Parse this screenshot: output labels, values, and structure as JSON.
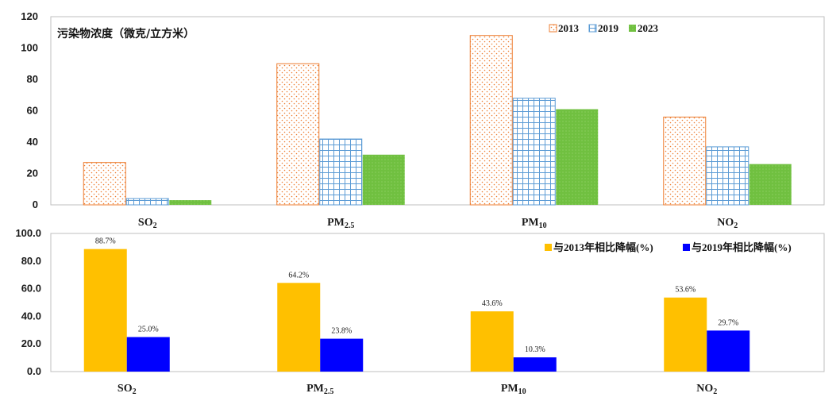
{
  "chart_data": [
    {
      "type": "bar",
      "title": "污染物浓度（微克/立方米）",
      "categories": [
        {
          "main": "SO",
          "sub": "2"
        },
        {
          "main": "PM",
          "sub": "2.5"
        },
        {
          "main": "PM",
          "sub": "10"
        },
        {
          "main": "NO",
          "sub": "2"
        }
      ],
      "series": [
        {
          "name": "2013",
          "values": [
            27,
            90,
            108,
            56
          ],
          "color": "#ED7D31",
          "pattern": "dots"
        },
        {
          "name": "2019",
          "values": [
            4,
            42,
            68,
            37
          ],
          "color": "#5B9BD5",
          "pattern": "grid"
        },
        {
          "name": "2023",
          "values": [
            3,
            32,
            61,
            26
          ],
          "color": "#70C040",
          "pattern": "solid"
        }
      ],
      "ylim": [
        0,
        120
      ],
      "yticks": [
        "0",
        "20",
        "40",
        "60",
        "80",
        "100",
        "120"
      ],
      "legend": "top-right"
    },
    {
      "type": "bar",
      "categories": [
        {
          "main": "SO",
          "sub": "2"
        },
        {
          "main": "PM",
          "sub": "2.5"
        },
        {
          "main": "PM",
          "sub": "10"
        },
        {
          "main": "NO",
          "sub": "2"
        }
      ],
      "series": [
        {
          "name": "与2013年相比降幅(%)",
          "values": [
            88.7,
            64.2,
            43.6,
            53.6
          ],
          "labels": [
            "88.7%",
            "64.2%",
            "43.6%",
            "53.6%"
          ],
          "color": "#FFC000"
        },
        {
          "name": "与2019年相比降幅(%)",
          "values": [
            25.0,
            23.8,
            10.3,
            29.7
          ],
          "labels": [
            "25.0%",
            "23.8%",
            "10.3%",
            "29.7%"
          ],
          "color": "#0000FF"
        }
      ],
      "ylim": [
        0,
        100
      ],
      "yticks": [
        "0.0",
        "20.0",
        "40.0",
        "60.0",
        "80.0",
        "100.0"
      ],
      "legend": "top-right"
    }
  ]
}
